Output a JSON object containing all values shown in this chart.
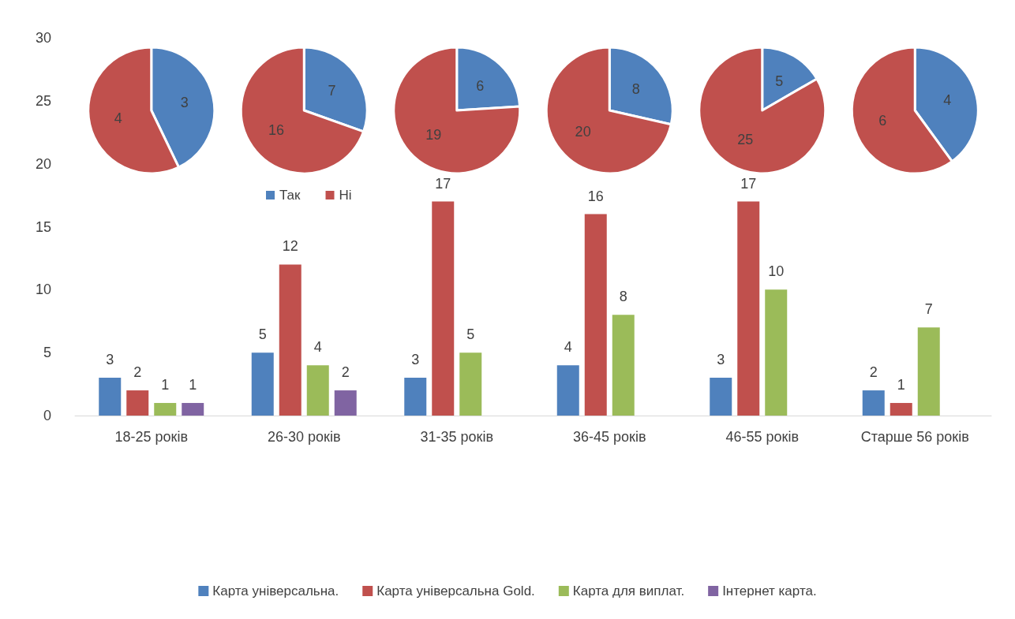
{
  "chart_data": [
    {
      "type": "bar",
      "categories": [
        "18-25 років",
        "26-30 років",
        "31-35 років",
        "36-45 років",
        "46-55 років",
        "Старше 56 років"
      ],
      "series": [
        {
          "name": "Карта універсальна.",
          "color": "#4f81bd",
          "values": [
            3,
            5,
            3,
            4,
            3,
            2
          ]
        },
        {
          "name": "Карта універсальна Gold.",
          "color": "#c0504d",
          "values": [
            2,
            12,
            17,
            16,
            17,
            1
          ]
        },
        {
          "name": "Карта для виплат.",
          "color": "#9bbb59",
          "values": [
            1,
            4,
            5,
            8,
            10,
            7
          ]
        },
        {
          "name": "Інтернет карта.",
          "color": "#8064a2",
          "values": [
            1,
            2,
            null,
            null,
            null,
            null
          ]
        }
      ],
      "ylim": [
        0,
        30
      ],
      "yticks": [
        0,
        5,
        10,
        15,
        20,
        25,
        30
      ],
      "grid": false,
      "legend": "bottom",
      "data_labels": true
    },
    {
      "type": "pie",
      "categories": [
        "Так",
        "Ні"
      ],
      "colors": [
        "#4f81bd",
        "#c0504d"
      ],
      "data_labels": true,
      "legend": "bottom",
      "series": [
        {
          "values": [
            3,
            4
          ]
        },
        {
          "values": [
            7,
            16
          ]
        },
        {
          "values": [
            6,
            19
          ]
        },
        {
          "values": [
            8,
            20
          ]
        },
        {
          "values": [
            5,
            25
          ]
        },
        {
          "values": [
            4,
            6
          ]
        }
      ]
    }
  ]
}
